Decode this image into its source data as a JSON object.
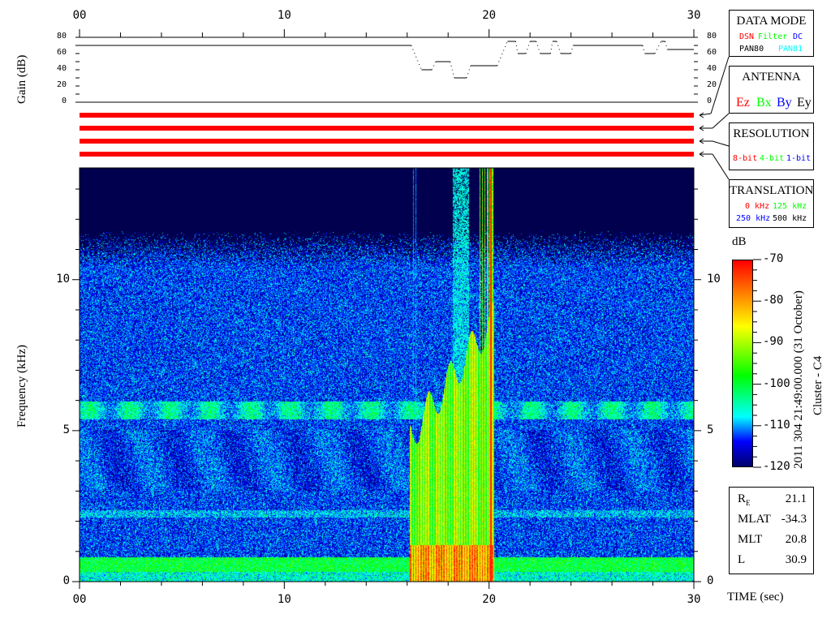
{
  "chart_data": {
    "type": "heatmap",
    "xlabel": "TIME (sec)",
    "ylabel": "Frequency (kHz)",
    "xlim": [
      0,
      30
    ],
    "x_ticks": [
      "00",
      "10",
      "20",
      "30"
    ],
    "ylim": [
      0,
      13.7
    ],
    "y_ticks": [
      "0",
      "5",
      "10"
    ],
    "colorbar": {
      "label": "dB",
      "range": [
        -120,
        -70
      ],
      "ticks": [
        "-70",
        "-80",
        "-90",
        "-100",
        "-110",
        "-120"
      ],
      "colormap": [
        "#000050",
        "#0000ff",
        "#00ffff",
        "#00ff00",
        "#ffff00",
        "#ff8000",
        "#ff0000"
      ]
    },
    "gain": {
      "type": "line",
      "ylabel": "Gain (dB)",
      "ylim": [
        0,
        80
      ],
      "y_ticks": [
        "80",
        "60",
        "40",
        "20",
        "0"
      ],
      "steps": [
        [
          0,
          16.2,
          70
        ],
        [
          16.7,
          17.2,
          40
        ],
        [
          17.4,
          18.1,
          50
        ],
        [
          18.3,
          18.9,
          30
        ],
        [
          19.1,
          20.4,
          45
        ],
        [
          20.9,
          21.3,
          75
        ],
        [
          21.4,
          21.8,
          60
        ],
        [
          22.0,
          22.3,
          75
        ],
        [
          22.5,
          23.0,
          60
        ],
        [
          23.1,
          23.3,
          75
        ],
        [
          23.5,
          24.0,
          60
        ],
        [
          24.1,
          27.5,
          70
        ],
        [
          27.6,
          28.1,
          60
        ],
        [
          28.4,
          28.6,
          75
        ],
        [
          28.7,
          30,
          65
        ]
      ]
    }
  },
  "panels": {
    "data_mode": {
      "title": "DATA MODE",
      "items": [
        {
          "text": "DSN",
          "color": "#ff0000"
        },
        {
          "text": "Filter",
          "color": "#00ff00"
        },
        {
          "text": "DC",
          "color": "#0000ff"
        },
        {
          "text": "PAN80",
          "color": "#000000"
        },
        {
          "text": "PAN81",
          "color": "#00ffff"
        }
      ]
    },
    "antenna": {
      "title": "ANTENNA",
      "items": [
        {
          "text": "Ez",
          "color": "#ff0000"
        },
        {
          "text": "Bx",
          "color": "#00ff00"
        },
        {
          "text": "By",
          "color": "#0000ff"
        },
        {
          "text": "Ey",
          "color": "#000000"
        }
      ]
    },
    "resolution": {
      "title": "RESOLUTION",
      "items": [
        {
          "text": "8-bit",
          "color": "#ff0000"
        },
        {
          "text": "4-bit",
          "color": "#00ff00"
        },
        {
          "text": "1-bit",
          "color": "#0000ff"
        }
      ]
    },
    "translation": {
      "title": "TRANSLATION",
      "items": [
        {
          "text": "0 kHz",
          "color": "#ff0000"
        },
        {
          "text": "125 kHz",
          "color": "#00ff00"
        },
        {
          "text": "250 kHz",
          "color": "#0000ff"
        },
        {
          "text": "500 kHz",
          "color": "#000000"
        }
      ]
    },
    "indicator_color": "#ff0000"
  },
  "timestamp": "2011 304 21:49:00.000 (31 October)",
  "spacecraft": "Cluster - C4",
  "ephemeris": [
    {
      "label": "R",
      "sub": "E",
      "value": "21.1"
    },
    {
      "label": "MLAT",
      "sub": "",
      "value": "-34.3"
    },
    {
      "label": "MLT",
      "sub": "",
      "value": "20.8"
    },
    {
      "label": "L",
      "sub": "",
      "value": "30.9"
    }
  ]
}
